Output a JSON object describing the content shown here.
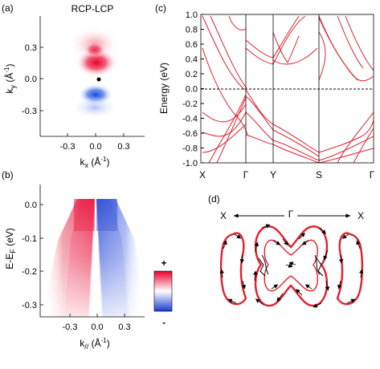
{
  "panels": {
    "a": {
      "label": "(a)",
      "title": "RCP-LCP",
      "xlabel_main": "k",
      "xlabel_sub": "x",
      "xlabel_unit": " (Å",
      "xlabel_exp": "-1",
      "xlabel_close": ")",
      "ylabel_main": "k",
      "ylabel_sub": "y",
      "ylabel_unit": " (Å",
      "ylabel_exp": "-1",
      "ylabel_close": ")",
      "xticks": [
        "-0.3",
        "0.0",
        "0.3"
      ],
      "yticks": [
        "0.3",
        "0.0",
        "-0.3"
      ]
    },
    "b": {
      "label": "(b)",
      "xlabel_main": "k",
      "xlabel_sub": "//",
      "xlabel_unit": " (Å",
      "xlabel_exp": "-1",
      "xlabel_close": ")",
      "ylabel_main": "E-E",
      "ylabel_sub": "F",
      "ylabel_unit": " (eV)",
      "xticks": [
        "-0.3",
        "0.0",
        "0.3"
      ],
      "yticks": [
        "0.0",
        "-0.1",
        "-0.2",
        "-0.3"
      ],
      "colorbar_plus": "+",
      "colorbar_minus": "-",
      "colors": {
        "positive": "#e8203a",
        "negative": "#2a55e0"
      }
    },
    "c": {
      "label": "(c)",
      "ylabel": "Energy (eV)",
      "yticks": [
        "1.0",
        "0.8",
        "0.6",
        "0.4",
        "0.2",
        "0.0",
        "-0.2",
        "-0.4",
        "-0.6",
        "-0.8",
        "-1.0"
      ],
      "kpoints": [
        "X",
        "Γ",
        "Y",
        "S",
        "Γ"
      ],
      "band_color": "#e0202e"
    },
    "d": {
      "label": "(d)",
      "left_label": "X",
      "center_label": "Γ",
      "right_label": "X",
      "contour_color": "#e0202e"
    }
  }
}
